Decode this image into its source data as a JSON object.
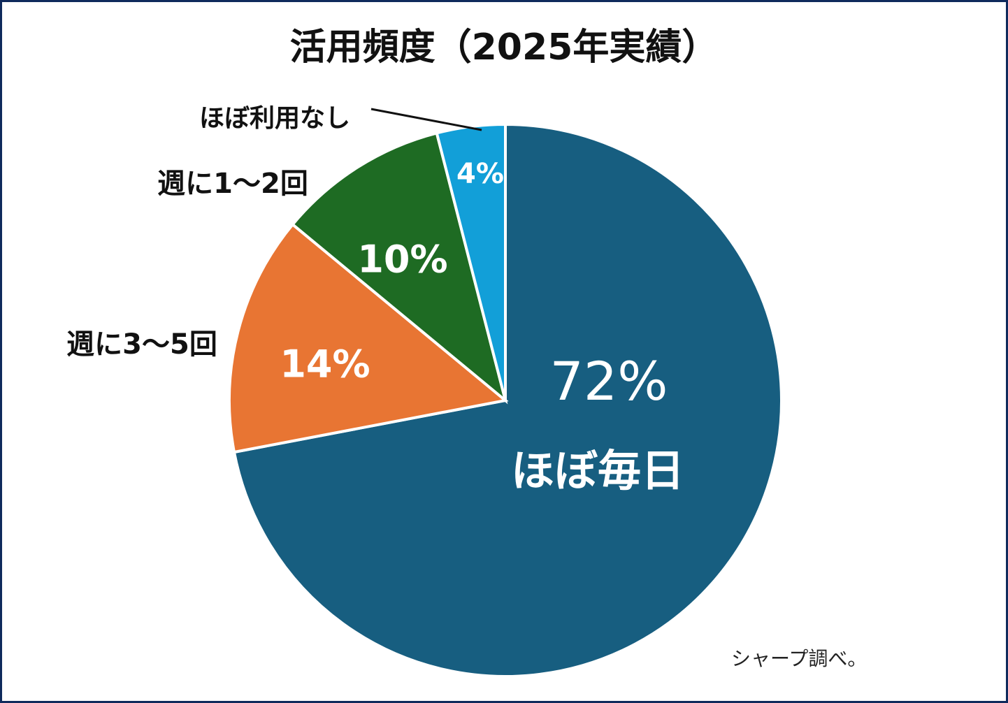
{
  "chart_data": {
    "type": "pie",
    "title": "活用頻度（2025年実績）",
    "start_angle": "12 o'clock",
    "direction": "clockwise",
    "slices": [
      {
        "label": "ほぼ毎日",
        "value": 72,
        "value_label": "72%",
        "color": "#175e80"
      },
      {
        "label": "週に3～5回",
        "value": 14,
        "value_label": "14%",
        "color": "#e87533"
      },
      {
        "label": "週に1～2回",
        "value": 10,
        "value_label": "10%",
        "color": "#1e6b23"
      },
      {
        "label": "ほぼ利用なし",
        "value": 4,
        "value_label": "4%",
        "color": "#129fd8"
      }
    ],
    "note": "シャープ調べ。"
  }
}
